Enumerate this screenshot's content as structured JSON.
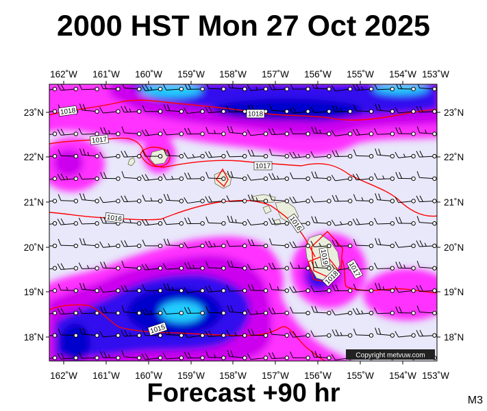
{
  "title": "2000 HST Mon 27 Oct 2025",
  "footer": "Forecast +90 hr",
  "model_code": "M3",
  "copyright": "Copyright metvuw.com",
  "map": {
    "lon_labels": [
      "162˚W",
      "161˚W",
      "160˚W",
      "159˚W",
      "158˚W",
      "157˚W",
      "156˚W",
      "155˚W",
      "154˚W",
      "153˚W"
    ],
    "lat_labels": [
      "23˚N",
      "22˚N",
      "21˚N",
      "20˚N",
      "19˚N",
      "18˚N"
    ],
    "isobar_labels": [
      "1018",
      "1018",
      "1017",
      "1017",
      "1016",
      "1016",
      "1015",
      "1019",
      "1018",
      "1017"
    ],
    "colors": {
      "background": "#e8e8fa",
      "precip_light": "#ff33ff",
      "precip_mid": "#cc00ee",
      "precip_blue": "#3311ee",
      "precip_deep": "#0000cc",
      "precip_cyan": "#22ccff",
      "land": "#eaeedc",
      "isobar": "#ff0000"
    }
  }
}
